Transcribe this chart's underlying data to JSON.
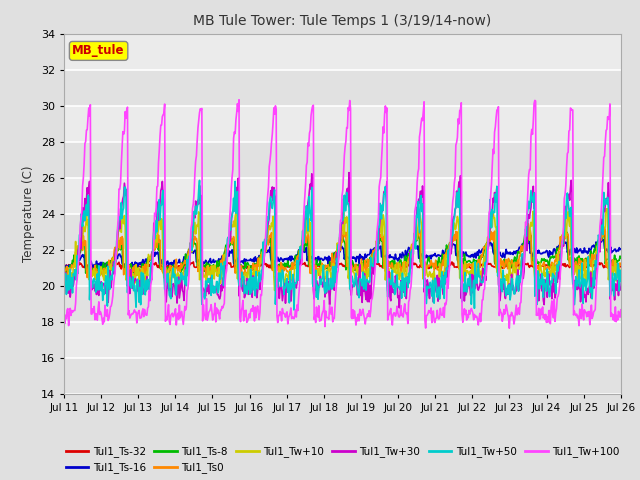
{
  "title": "MB Tule Tower: Tule Temps 1 (3/19/14-now)",
  "ylabel": "Temperature (C)",
  "xlim": [
    0,
    15
  ],
  "ylim": [
    14,
    34
  ],
  "yticks": [
    14,
    16,
    18,
    20,
    22,
    24,
    26,
    28,
    30,
    32,
    34
  ],
  "xtick_labels": [
    "Jul 11",
    "Jul 12",
    "Jul 13",
    "Jul 14",
    "Jul 15",
    "Jul 16",
    "Jul 17",
    "Jul 18",
    "Jul 19",
    "Jul 20",
    "Jul 21",
    "Jul 22",
    "Jul 23",
    "Jul 24",
    "Jul 25",
    "Jul 26"
  ],
  "legend_box_text": "MB_tule",
  "legend_box_color": "#ffff00",
  "legend_box_text_color": "#cc0000",
  "bg_color": "#e0e0e0",
  "plot_bg_color": "#ebebeb",
  "series_order": [
    "Tul1_Ts-32",
    "Tul1_Ts-16",
    "Tul1_Ts-8",
    "Tul1_Ts0",
    "Tul1_Tw+10",
    "Tul1_Tw+30",
    "Tul1_Tw+50",
    "Tul1_Tw+100"
  ],
  "series": {
    "Tul1_Ts-32": {
      "color": "#dd0000",
      "lw": 1.2,
      "base": 21.1,
      "amp": 0.08,
      "phase": 0.0,
      "noise": 0.05,
      "trend": 0.0
    },
    "Tul1_Ts-16": {
      "color": "#0000cc",
      "lw": 1.2,
      "base": 21.2,
      "amp": 0.3,
      "phase": 0.05,
      "noise": 0.1,
      "trend": 0.06
    },
    "Tul1_Ts-8": {
      "color": "#00bb00",
      "lw": 1.2,
      "base": 21.2,
      "amp": 0.7,
      "phase": 0.08,
      "noise": 0.15,
      "trend": 0.04
    },
    "Tul1_Ts0": {
      "color": "#ff8800",
      "lw": 1.2,
      "base": 21.2,
      "amp": 0.9,
      "phase": 0.1,
      "noise": 0.2,
      "trend": 0.03
    },
    "Tul1_Tw+10": {
      "color": "#cccc00",
      "lw": 1.2,
      "base": 21.3,
      "amp": 1.5,
      "phase": 0.15,
      "noise": 0.3,
      "trend": 0.01
    },
    "Tul1_Tw+30": {
      "color": "#cc00cc",
      "lw": 1.2,
      "base": 21.3,
      "amp": 2.8,
      "phase": 0.2,
      "noise": 0.4,
      "trend": 0.0
    },
    "Tul1_Tw+50": {
      "color": "#00cccc",
      "lw": 1.2,
      "base": 21.3,
      "amp": 2.5,
      "phase": 0.18,
      "noise": 0.5,
      "trend": 0.0
    },
    "Tul1_Tw+100": {
      "color": "#ff44ff",
      "lw": 1.2,
      "base": 21.3,
      "amp": 5.8,
      "phase": 0.22,
      "noise": 0.3,
      "trend": 0.0
    }
  },
  "legend_ncol": 6,
  "legend_rows": [
    [
      "Tul1_Ts-32",
      "Tul1_Ts-16",
      "Tul1_Ts-8",
      "Tul1_Ts0",
      "Tul1_Tw+10",
      "Tul1_Tw+30"
    ],
    [
      "Tul1_Tw+50",
      "Tul1_Tw+100"
    ]
  ]
}
